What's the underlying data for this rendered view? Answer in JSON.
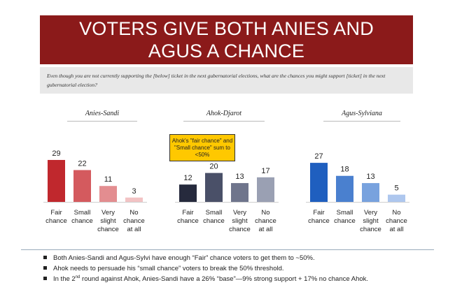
{
  "header": {
    "title": "VOTERS GIVE BOTH ANIES AND AGUS A CHANCE",
    "question": "Even though you are not currently supporting the [below] ticket in the next gubernatorial elections, what are the chances you might support [ticket] in the next gubernatorial election?"
  },
  "callout": {
    "text": "Ahok's \"fair chance\" and \"Small chance\" sum to <50%"
  },
  "chart_data": [
    {
      "type": "bar",
      "title": "Anies-Sandi",
      "categories": [
        "Fair chance",
        "Small chance",
        "Very slight chance",
        "No chance at all"
      ],
      "values": [
        29,
        22,
        11,
        3
      ],
      "colors": [
        "#c0282d",
        "#d45a5e",
        "#e38d90",
        "#f2c3c4"
      ]
    },
    {
      "type": "bar",
      "title": "Ahok-Djarot",
      "categories": [
        "Fair chance",
        "Small chance",
        "Very slight chance",
        "No chance at all"
      ],
      "values": [
        12,
        20,
        13,
        17
      ],
      "colors": [
        "#262a3d",
        "#4a5068",
        "#6f758c",
        "#9aa0b3"
      ]
    },
    {
      "type": "bar",
      "title": "Agus-Sylviana",
      "categories": [
        "Fair chance",
        "Small chance",
        "Very slight chance",
        "No chance at all"
      ],
      "values": [
        27,
        18,
        13,
        5
      ],
      "colors": [
        "#1f5fbf",
        "#4a80cf",
        "#78a2de",
        "#aec7ee"
      ]
    }
  ],
  "bullets": {
    "b1": "Both Anies-Sandi and Agus-Sylvi have enough “Fair” chance voters to get them to ~50%.",
    "b2": "Ahok needs to persuade his “small chance” voters to break the 50% threshold.",
    "b3_pre": "In the 2",
    "b3_sup": "nd",
    "b3_post": " round against Ahok, Anies-Sandi have a 26% “base”—9% strong support + 17% no chance Ahok."
  }
}
